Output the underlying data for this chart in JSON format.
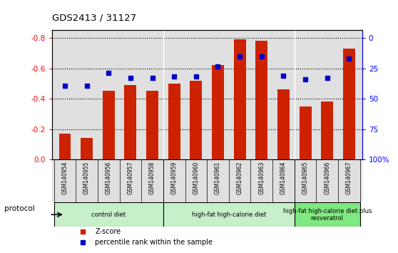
{
  "title": "GDS2413 / 31127",
  "samples": [
    "GSM140954",
    "GSM140955",
    "GSM140956",
    "GSM140957",
    "GSM140958",
    "GSM140959",
    "GSM140960",
    "GSM140961",
    "GSM140962",
    "GSM140963",
    "GSM140964",
    "GSM140965",
    "GSM140966",
    "GSM140967"
  ],
  "z_scores": [
    -0.17,
    -0.14,
    -0.45,
    -0.49,
    -0.45,
    -0.5,
    -0.52,
    -0.62,
    -0.79,
    -0.78,
    -0.46,
    -0.35,
    -0.38,
    -0.73
  ],
  "percentiles": [
    43,
    43,
    33,
    37,
    37,
    36,
    36,
    28,
    20,
    20,
    35,
    38,
    37,
    22
  ],
  "bar_color": "#cc2200",
  "dot_color": "#0000cc",
  "ylim_left": [
    0.0,
    -0.85
  ],
  "ylim_right": [
    100,
    0
  ],
  "yticks_left": [
    0.0,
    -0.2,
    -0.4,
    -0.6,
    -0.8
  ],
  "yticks_right": [
    100,
    75,
    50,
    25,
    0
  ],
  "yticks_right_labels": [
    "100%",
    "75",
    "50",
    "25",
    "0"
  ],
  "groups": [
    {
      "label": "control diet",
      "start": 0,
      "end": 4,
      "color": "#c8f0c8"
    },
    {
      "label": "high-fat high-calorie diet",
      "start": 5,
      "end": 10,
      "color": "#c8f0c8"
    },
    {
      "label": "high-fat high-calorie diet plus\nresveratrol",
      "start": 11,
      "end": 13,
      "color": "#80e880"
    }
  ],
  "protocol_label": "protocol",
  "legend_zscore": "Z-score",
  "legend_percentile": "percentile rank within the sample",
  "bar_width": 0.55,
  "background_color": "#ffffff",
  "plot_bg_color": "#e0e0e0",
  "group_separator_indices": [
    4,
    10
  ]
}
